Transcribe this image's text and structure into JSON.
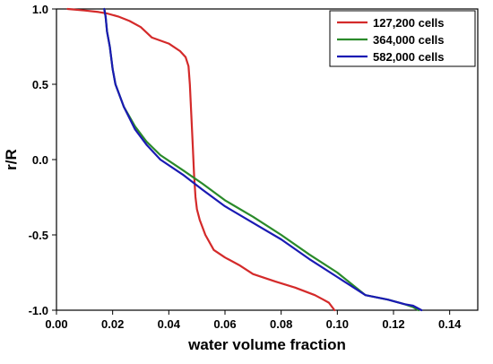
{
  "chart_data": {
    "type": "line",
    "xlabel": "water volume fraction",
    "ylabel": "r/R",
    "xlim": [
      0.0,
      0.15
    ],
    "ylim": [
      -1.0,
      1.0
    ],
    "x_ticks": [
      "0.00",
      "0.02",
      "0.04",
      "0.06",
      "0.08",
      "0.10",
      "0.12",
      "0.14"
    ],
    "y_ticks": [
      "1.0",
      "0.5",
      "0.0",
      "-0.5",
      "-1.0"
    ],
    "grid": false,
    "legend_position": "top-right",
    "series": [
      {
        "name": "127,200 cells",
        "color": "#d42a2a",
        "points": [
          [
            0.004,
            1.0
          ],
          [
            0.01,
            0.99
          ],
          [
            0.015,
            0.98
          ],
          [
            0.018,
            0.97
          ],
          [
            0.022,
            0.95
          ],
          [
            0.026,
            0.92
          ],
          [
            0.03,
            0.88
          ],
          [
            0.034,
            0.81
          ],
          [
            0.04,
            0.77
          ],
          [
            0.044,
            0.72
          ],
          [
            0.046,
            0.68
          ],
          [
            0.047,
            0.62
          ],
          [
            0.0475,
            0.5
          ],
          [
            0.048,
            0.3
          ],
          [
            0.0485,
            0.1
          ],
          [
            0.049,
            -0.1
          ],
          [
            0.0495,
            -0.25
          ],
          [
            0.05,
            -0.33
          ],
          [
            0.051,
            -0.4
          ],
          [
            0.053,
            -0.5
          ],
          [
            0.056,
            -0.6
          ],
          [
            0.06,
            -0.65
          ],
          [
            0.065,
            -0.7
          ],
          [
            0.07,
            -0.76
          ],
          [
            0.078,
            -0.81
          ],
          [
            0.085,
            -0.85
          ],
          [
            0.092,
            -0.9
          ],
          [
            0.095,
            -0.93
          ],
          [
            0.097,
            -0.95
          ],
          [
            0.099,
            -1.0
          ]
        ]
      },
      {
        "name": "364,000 cells",
        "color": "#2a8a2a",
        "points": [
          [
            0.017,
            1.0
          ],
          [
            0.0175,
            0.95
          ],
          [
            0.018,
            0.85
          ],
          [
            0.019,
            0.75
          ],
          [
            0.02,
            0.6
          ],
          [
            0.021,
            0.5
          ],
          [
            0.024,
            0.35
          ],
          [
            0.028,
            0.22
          ],
          [
            0.032,
            0.12
          ],
          [
            0.037,
            0.03
          ],
          [
            0.045,
            -0.07
          ],
          [
            0.052,
            -0.16
          ],
          [
            0.06,
            -0.27
          ],
          [
            0.07,
            -0.38
          ],
          [
            0.08,
            -0.5
          ],
          [
            0.09,
            -0.63
          ],
          [
            0.1,
            -0.75
          ],
          [
            0.106,
            -0.84
          ],
          [
            0.11,
            -0.9
          ],
          [
            0.118,
            -0.93
          ],
          [
            0.124,
            -0.96
          ],
          [
            0.127,
            -0.98
          ],
          [
            0.129,
            -1.0
          ]
        ]
      },
      {
        "name": "582,000 cells",
        "color": "#1a1ab3",
        "points": [
          [
            0.017,
            1.0
          ],
          [
            0.0175,
            0.95
          ],
          [
            0.018,
            0.85
          ],
          [
            0.019,
            0.75
          ],
          [
            0.02,
            0.6
          ],
          [
            0.021,
            0.5
          ],
          [
            0.024,
            0.35
          ],
          [
            0.028,
            0.2
          ],
          [
            0.032,
            0.1
          ],
          [
            0.037,
            0.0
          ],
          [
            0.045,
            -0.1
          ],
          [
            0.052,
            -0.2
          ],
          [
            0.06,
            -0.31
          ],
          [
            0.07,
            -0.42
          ],
          [
            0.08,
            -0.53
          ],
          [
            0.09,
            -0.66
          ],
          [
            0.1,
            -0.78
          ],
          [
            0.105,
            -0.84
          ],
          [
            0.11,
            -0.9
          ],
          [
            0.118,
            -0.93
          ],
          [
            0.124,
            -0.96
          ],
          [
            0.127,
            -0.97
          ],
          [
            0.13,
            -1.0
          ]
        ]
      }
    ]
  }
}
